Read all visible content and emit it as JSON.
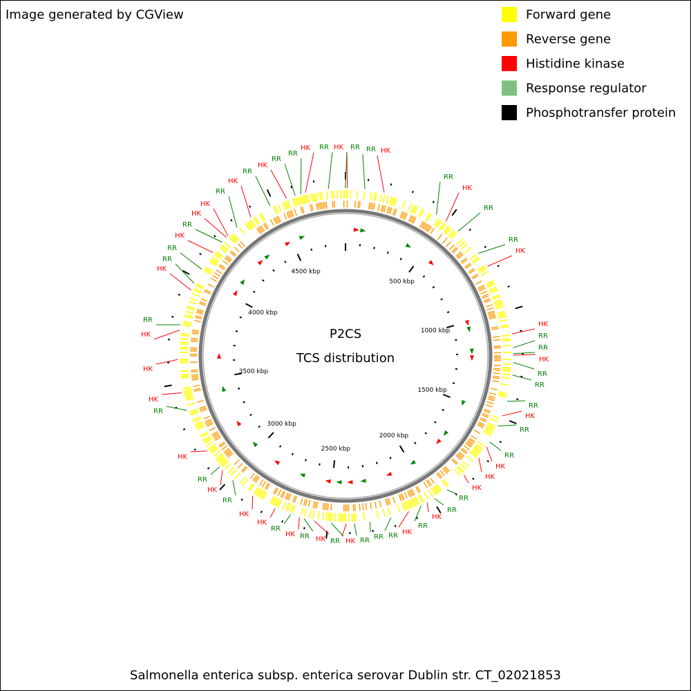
{
  "header": {
    "credit": "Image generated by CGView"
  },
  "legend": [
    {
      "label": "Forward gene",
      "color": "#ffff00"
    },
    {
      "label": "Reverse gene",
      "color": "#ff9900"
    },
    {
      "label": "Histidine kinase",
      "color": "#ff0000"
    },
    {
      "label": "Response regulator",
      "color": "#80c080"
    },
    {
      "label": "Phosphotransfer protein",
      "color": "#000000"
    }
  ],
  "map": {
    "title": "P2CS",
    "subtitle": "TCS distribution",
    "ticks": [
      "500 kbp",
      "1000 kbp",
      "1500 kbp",
      "2000 kbp",
      "2500 kbp",
      "3000 kbp",
      "3500 kbp",
      "4000 kbp",
      "4500 kbp"
    ],
    "labels": [
      {
        "text": "RR",
        "color": "#008000"
      },
      {
        "text": "HK",
        "color": "#ff0000"
      },
      {
        "text": "RR",
        "color": "#008000"
      },
      {
        "text": "RR",
        "color": "#008000"
      },
      {
        "text": "HK",
        "color": "#ff0000"
      },
      {
        "text": "RR",
        "color": "#008000"
      },
      {
        "text": "HK",
        "color": "#ff0000"
      },
      {
        "text": "RR",
        "color": "#008000"
      },
      {
        "text": "RR",
        "color": "#008000"
      },
      {
        "text": "HK",
        "color": "#ff0000"
      },
      {
        "text": "HK",
        "color": "#ff0000"
      },
      {
        "text": "RR",
        "color": "#008000"
      },
      {
        "text": "RR",
        "color": "#008000"
      },
      {
        "text": "HK",
        "color": "#ff0000"
      },
      {
        "text": "RR",
        "color": "#008000"
      },
      {
        "text": "RR",
        "color": "#008000"
      },
      {
        "text": "RR",
        "color": "#008000"
      },
      {
        "text": "HK",
        "color": "#ff0000"
      },
      {
        "text": "RR",
        "color": "#008000"
      },
      {
        "text": "RR",
        "color": "#008000"
      },
      {
        "text": "HK",
        "color": "#ff0000"
      },
      {
        "text": "HK",
        "color": "#ff0000"
      },
      {
        "text": "HK",
        "color": "#ff0000"
      },
      {
        "text": "RR",
        "color": "#008000"
      },
      {
        "text": "RR",
        "color": "#008000"
      },
      {
        "text": "HK",
        "color": "#ff0000"
      },
      {
        "text": "RR",
        "color": "#008000"
      },
      {
        "text": "HK",
        "color": "#ff0000"
      },
      {
        "text": "RR",
        "color": "#008000"
      },
      {
        "text": "RR",
        "color": "#008000"
      },
      {
        "text": "RR",
        "color": "#008000"
      },
      {
        "text": "HK",
        "color": "#ff0000"
      },
      {
        "text": "RR",
        "color": "#008000"
      },
      {
        "text": "HK",
        "color": "#ff0000"
      },
      {
        "text": "RR",
        "color": "#008000"
      },
      {
        "text": "HK",
        "color": "#ff0000"
      },
      {
        "text": "RR",
        "color": "#008000"
      },
      {
        "text": "HK",
        "color": "#ff0000"
      },
      {
        "text": "HK",
        "color": "#ff0000"
      },
      {
        "text": "RR",
        "color": "#008000"
      },
      {
        "text": "HK",
        "color": "#ff0000"
      },
      {
        "text": "RR",
        "color": "#008000"
      },
      {
        "text": "HK",
        "color": "#ff0000"
      },
      {
        "text": "RR",
        "color": "#008000"
      },
      {
        "text": "HK",
        "color": "#ff0000"
      },
      {
        "text": "HK",
        "color": "#ff0000"
      },
      {
        "text": "HK",
        "color": "#ff0000"
      },
      {
        "text": "RR",
        "color": "#008000"
      },
      {
        "text": "HK",
        "color": "#ff0000"
      },
      {
        "text": "RR",
        "color": "#008000"
      },
      {
        "text": "RR",
        "color": "#008000"
      },
      {
        "text": "HK",
        "color": "#ff0000"
      },
      {
        "text": "RR",
        "color": "#008000"
      },
      {
        "text": "HK",
        "color": "#ff0000"
      },
      {
        "text": "HK",
        "color": "#ff0000"
      },
      {
        "text": "RR",
        "color": "#008000"
      },
      {
        "text": "HK",
        "color": "#ff0000"
      },
      {
        "text": "RR",
        "color": "#008000"
      },
      {
        "text": "HK",
        "color": "#ff0000"
      },
      {
        "text": "RR",
        "color": "#008000"
      },
      {
        "text": "RR",
        "color": "#008000"
      },
      {
        "text": "HK",
        "color": "#ff0000"
      }
    ]
  },
  "footer": {
    "caption": "Salmonella enterica subsp. enterica serovar Dublin str. CT_02021853"
  }
}
